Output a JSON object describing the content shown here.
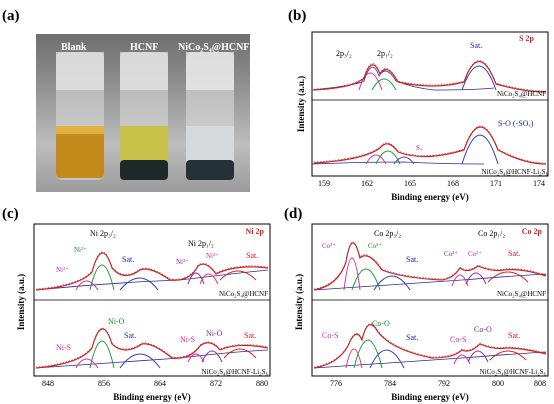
{
  "panels": {
    "a": {
      "letter": "(a)",
      "labels": [
        "Blank",
        "HCNF",
        "NiCo₂S₄@HCNF"
      ]
    },
    "b": {
      "letter": "(b)",
      "element": "S 2p",
      "peaks": [
        "2p₃/₂",
        "2p₁/₂",
        "Sat.",
        "S-O (-SOₓ)",
        "Sₓ"
      ],
      "samples": [
        "NiCo₂S₄@HCNF",
        "NiCo₂S₄@HCNF-Li₂S₆"
      ],
      "xticks": [
        "159",
        "162",
        "165",
        "168",
        "171",
        "174"
      ],
      "xlabel": "Binding energy (eV)",
      "ylabel": "Intensity (a.u.)"
    },
    "c": {
      "letter": "(c)",
      "element": "Ni 2p",
      "peaks_top": [
        "Ni 2p₃/₂",
        "Ni²⁺",
        "Ni³⁺",
        "Sat.",
        "Ni 2p₁/₂",
        "Ni³⁺",
        "Ni²⁺",
        "Sat."
      ],
      "peaks_bottom": [
        "Ni-O",
        "Ni-S",
        "Sat.",
        "Ni-S",
        "Ni-O",
        "Sat."
      ],
      "samples": [
        "NiCo₂S₄@HCNF",
        "NiCo₂S₄@HCNF-Li₂S₆"
      ],
      "xticks": [
        "848",
        "856",
        "864",
        "872",
        "880"
      ],
      "xlabel": "Binding energy (eV)",
      "ylabel": "Intensity (a.u.)"
    },
    "d": {
      "letter": "(d)",
      "element": "Co 2p",
      "peaks_top": [
        "Co 2p₃/₂",
        "Co³⁺",
        "Co²⁺",
        "Sat.",
        "Co 2p₁/₂",
        "Co³⁺",
        "Co²⁺",
        "Sat."
      ],
      "peaks_bottom": [
        "Co-S",
        "Co-O",
        "Sat.",
        "Co-S",
        "Co-O",
        "Sat."
      ],
      "samples": [
        "NiCo₂S₄@HCNF",
        "NiCo₂S₄@HCNF-Li₂S₆"
      ],
      "xticks": [
        "776",
        "784",
        "792",
        "800",
        "808"
      ],
      "xlabel": "Binding energy (eV)",
      "ylabel": "Intensity (a.u.)"
    }
  },
  "colors": {
    "data": "#555555",
    "fit": "#e21d1d",
    "bg": "#2b2b8f",
    "pink": "#e0309a",
    "green": "#1e9c37",
    "blue": "#2a3fc8",
    "purple": "#8a2aa8",
    "label_red": "#d22020",
    "label_pink": "#d428a0",
    "label_green": "#148a2e",
    "label_blue": "#1a2a9a",
    "label_purple": "#8a1fa8"
  }
}
